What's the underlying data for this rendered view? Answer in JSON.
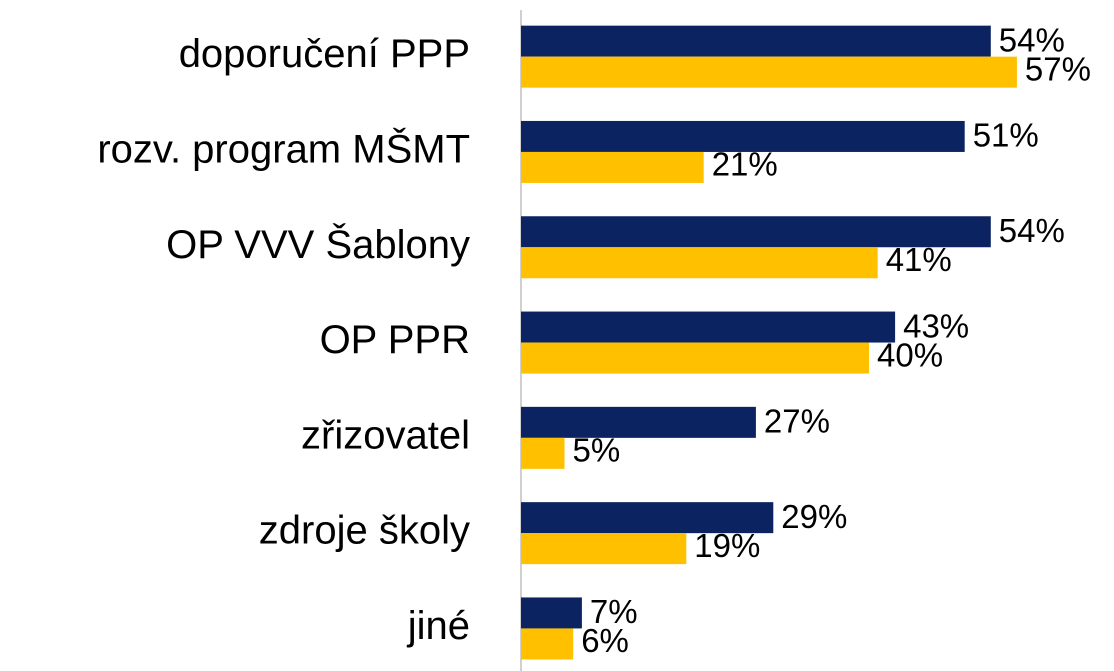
{
  "chart_data": {
    "type": "bar",
    "orientation": "horizontal",
    "categories": [
      "doporučení PPP",
      "rozv. program MŠMT",
      "OP VVV Šablony",
      "OP PPR",
      "zřizovatel",
      "zdroje školy",
      "jiné"
    ],
    "series": [
      {
        "color": "#0b2461",
        "values": [
          54,
          51,
          54,
          43,
          27,
          29,
          7
        ],
        "value_labels": [
          "54%",
          "51%",
          "54%",
          "43%",
          "27%",
          "29%",
          "7%"
        ]
      },
      {
        "color": "#ffc000",
        "values": [
          57,
          21,
          41,
          40,
          5,
          19,
          6
        ],
        "value_labels": [
          "57%",
          "21%",
          "41%",
          "40%",
          "5%",
          "19%",
          "6%"
        ]
      }
    ],
    "xlim": [
      0,
      60
    ]
  }
}
